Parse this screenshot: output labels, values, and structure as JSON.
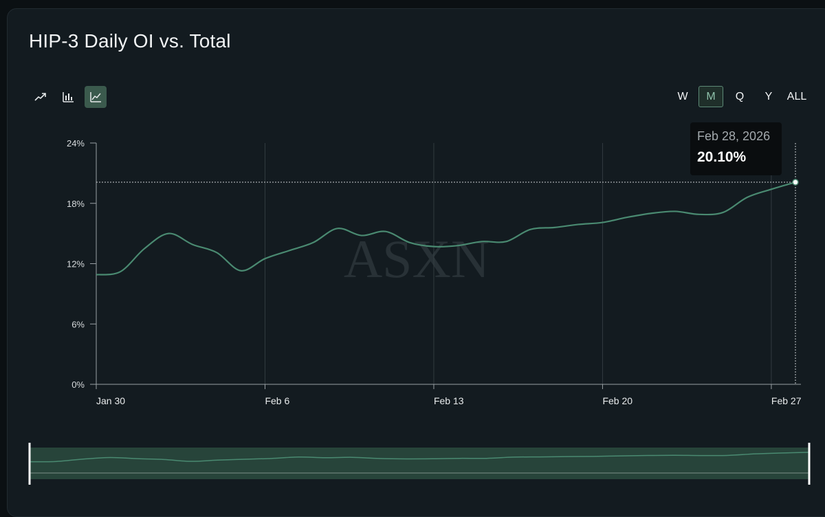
{
  "title": "HIP-3 Daily OI vs. Total",
  "chart_type_buttons": [
    {
      "icon": "trend-line-icon",
      "active": false
    },
    {
      "icon": "bar-chart-icon",
      "active": false
    },
    {
      "icon": "line-chart-icon",
      "active": true
    }
  ],
  "periods": [
    {
      "label": "W",
      "active": false
    },
    {
      "label": "M",
      "active": true
    },
    {
      "label": "Q",
      "active": false
    },
    {
      "label": "Y",
      "active": false
    },
    {
      "label": "ALL",
      "active": false
    }
  ],
  "tooltip": {
    "date": "Feb 28, 2026",
    "value": "20.10%"
  },
  "watermark": "ASXN",
  "colors": {
    "line": "#4a8a71",
    "accent": "#3b5a4d",
    "background": "#131b20"
  },
  "chart_data": {
    "type": "line",
    "title": "HIP-3 Daily OI vs. Total",
    "xlabel": "",
    "ylabel": "",
    "ylim": [
      0,
      24
    ],
    "yticks": [
      "0%",
      "6%",
      "12%",
      "18%",
      "24%"
    ],
    "xticks": [
      "Jan 30",
      "Feb 6",
      "Feb 13",
      "Feb 20",
      "Feb 27"
    ],
    "grid": "vertical",
    "x": [
      "2026-01-30",
      "2026-01-31",
      "2026-02-01",
      "2026-02-02",
      "2026-02-03",
      "2026-02-04",
      "2026-02-05",
      "2026-02-06",
      "2026-02-07",
      "2026-02-08",
      "2026-02-09",
      "2026-02-10",
      "2026-02-11",
      "2026-02-12",
      "2026-02-13",
      "2026-02-14",
      "2026-02-15",
      "2026-02-16",
      "2026-02-17",
      "2026-02-18",
      "2026-02-19",
      "2026-02-20",
      "2026-02-21",
      "2026-02-22",
      "2026-02-23",
      "2026-02-24",
      "2026-02-25",
      "2026-02-26",
      "2026-02-27",
      "2026-02-28"
    ],
    "series": [
      {
        "values": [
          10.9,
          11.2,
          13.5,
          15.0,
          13.9,
          13.1,
          11.3,
          12.5,
          13.3,
          14.1,
          15.5,
          14.8,
          15.2,
          14.1,
          13.7,
          13.8,
          14.2,
          14.2,
          15.4,
          15.6,
          15.9,
          16.1,
          16.6,
          17.0,
          17.2,
          16.9,
          17.1,
          18.6,
          19.4,
          20.1
        ]
      }
    ],
    "highlight": {
      "x": "2026-02-28",
      "y": 20.1
    }
  }
}
